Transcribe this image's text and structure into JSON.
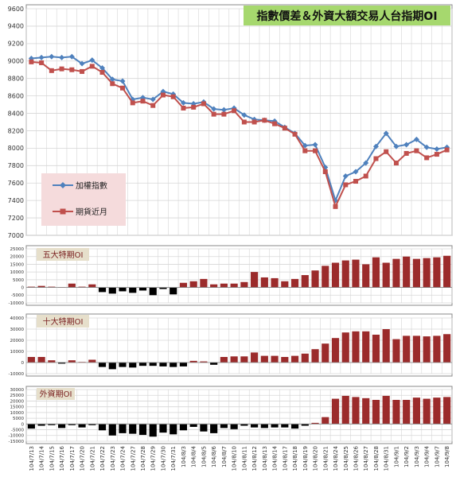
{
  "chart_data": [
    {
      "type": "line",
      "title": "指數價差＆外資大額交易人台指期OI",
      "ylim": [
        7000,
        9600
      ],
      "y_ticks": [
        7000,
        7200,
        7400,
        7600,
        7800,
        8000,
        8200,
        8400,
        8600,
        8800,
        9000,
        9200,
        9400,
        9600
      ],
      "grid": true,
      "legend": "left-middle",
      "series": [
        {
          "name": "加權指數",
          "color": "#4f81bd",
          "values": [
            9030,
            9040,
            9050,
            9040,
            9050,
            8970,
            9010,
            8920,
            8790,
            8770,
            8560,
            8580,
            8560,
            8650,
            8620,
            8520,
            8510,
            8530,
            8450,
            8440,
            8460,
            8380,
            8330,
            8320,
            8310,
            8240,
            8170,
            8030,
            8040,
            7780,
            7400,
            7680,
            7730,
            7830,
            8020,
            8170,
            8020,
            8040,
            8100,
            8010,
            7990,
            8010
          ]
        },
        {
          "name": "期貨近月",
          "color": "#c0504d",
          "values": [
            8990,
            8980,
            8890,
            8910,
            8900,
            8880,
            8940,
            8870,
            8740,
            8690,
            8520,
            8540,
            8490,
            8610,
            8590,
            8460,
            8470,
            8510,
            8390,
            8390,
            8430,
            8300,
            8300,
            8320,
            8280,
            8230,
            8160,
            7970,
            7970,
            7730,
            7330,
            7580,
            7620,
            7680,
            7880,
            7960,
            7830,
            7940,
            7970,
            7890,
            7930,
            7980
          ]
        }
      ]
    },
    {
      "type": "bar",
      "title": "五大特期OI",
      "ylim": [
        -10000,
        25000
      ],
      "y_ticks": [
        -10000,
        -5000,
        0,
        5000,
        10000,
        15000,
        20000,
        25000
      ],
      "values": [
        500,
        1000,
        500,
        200,
        2500,
        500,
        2000,
        -3000,
        -4000,
        -2500,
        -3500,
        -2000,
        -5000,
        -1000,
        -4500,
        3000,
        4000,
        5500,
        2000,
        2500,
        2500,
        3500,
        10000,
        6500,
        6000,
        4000,
        5500,
        8000,
        11000,
        14000,
        16000,
        17500,
        18000,
        15000,
        19500,
        16000,
        18500,
        20000,
        18500,
        19000,
        19500,
        20500
      ]
    },
    {
      "type": "bar",
      "title": "十大特期OI",
      "ylim": [
        -10000,
        40000
      ],
      "y_ticks": [
        -10000,
        0,
        10000,
        20000,
        30000,
        40000
      ],
      "values": [
        5000,
        5000,
        2000,
        -1000,
        2000,
        500,
        2500,
        -4000,
        -6000,
        -4000,
        -4500,
        -3000,
        -3000,
        -3500,
        -4000,
        -3500,
        1500,
        1000,
        -2000,
        5000,
        5500,
        5500,
        9000,
        6000,
        6000,
        5000,
        6000,
        8000,
        12000,
        17000,
        22000,
        27000,
        28000,
        28000,
        25000,
        30000,
        21000,
        24000,
        24000,
        23500,
        24000,
        25500
      ]
    },
    {
      "type": "bar",
      "title": "外資期OI",
      "ylim": [
        -15000,
        30000
      ],
      "y_ticks": [
        -15000,
        -10000,
        -5000,
        0,
        5000,
        10000,
        15000,
        20000,
        25000,
        30000
      ],
      "values": [
        -4000,
        -1500,
        -1000,
        -3500,
        -1000,
        -3000,
        -1000,
        -5500,
        -10000,
        -8000,
        -8500,
        -9500,
        -11000,
        -7500,
        -9000,
        -5500,
        -2500,
        -6500,
        -8000,
        -3500,
        -4500,
        -1500,
        -3000,
        -3500,
        -3000,
        -3000,
        -4000,
        -1500,
        1000,
        6000,
        22000,
        24500,
        23500,
        22500,
        21000,
        24500,
        21000,
        21000,
        23000,
        22000,
        23000,
        23500
      ]
    }
  ],
  "x_dates": [
    "104/7/13",
    "104/7/14",
    "104/7/15",
    "104/7/16",
    "104/7/17",
    "104/7/20",
    "104/7/21",
    "104/7/22",
    "104/7/23",
    "104/7/24",
    "104/7/27",
    "104/7/28",
    "104/7/29",
    "104/7/30",
    "104/7/31",
    "104/8/3",
    "104/8/4",
    "104/8/5",
    "104/8/6",
    "104/8/7",
    "104/8/10",
    "104/8/11",
    "104/8/12",
    "104/8/13",
    "104/8/14",
    "104/8/17",
    "104/8/18",
    "104/8/19",
    "104/8/20",
    "104/8/21",
    "104/8/24",
    "104/8/25",
    "104/8/26",
    "104/8/27",
    "104/8/28",
    "104/8/31",
    "104/9/1",
    "104/9/2",
    "104/9/3",
    "104/9/4",
    "104/9/7",
    "104/9/8"
  ],
  "y_tick_labels": {
    "main": [
      "7000",
      "7200",
      "7400",
      "7600",
      "7800",
      "8000",
      "8200",
      "8400",
      "8600",
      "8800",
      "9000",
      "9200",
      "9400",
      "9600"
    ],
    "p1": [
      "-10000",
      "-5000",
      "0",
      "5000",
      "10000",
      "15000",
      "20000",
      "25000"
    ],
    "p2": [
      "-10000",
      "0",
      "10000",
      "20000",
      "30000",
      "40000"
    ],
    "p3": [
      "-15000",
      "-10000",
      "-5000",
      "0",
      "5000",
      "10000",
      "15000",
      "20000",
      "25000",
      "30000"
    ]
  },
  "colors": {
    "index_line": "#4f81bd",
    "futures_line": "#c0504d",
    "bar_positive": "#9b2b2b",
    "bar_negative": "#000000",
    "title_box": "#a6d86e",
    "legend_box": "#f5dbdc",
    "label_box": "#e6dfcb",
    "grid": "#d6d6d6"
  }
}
